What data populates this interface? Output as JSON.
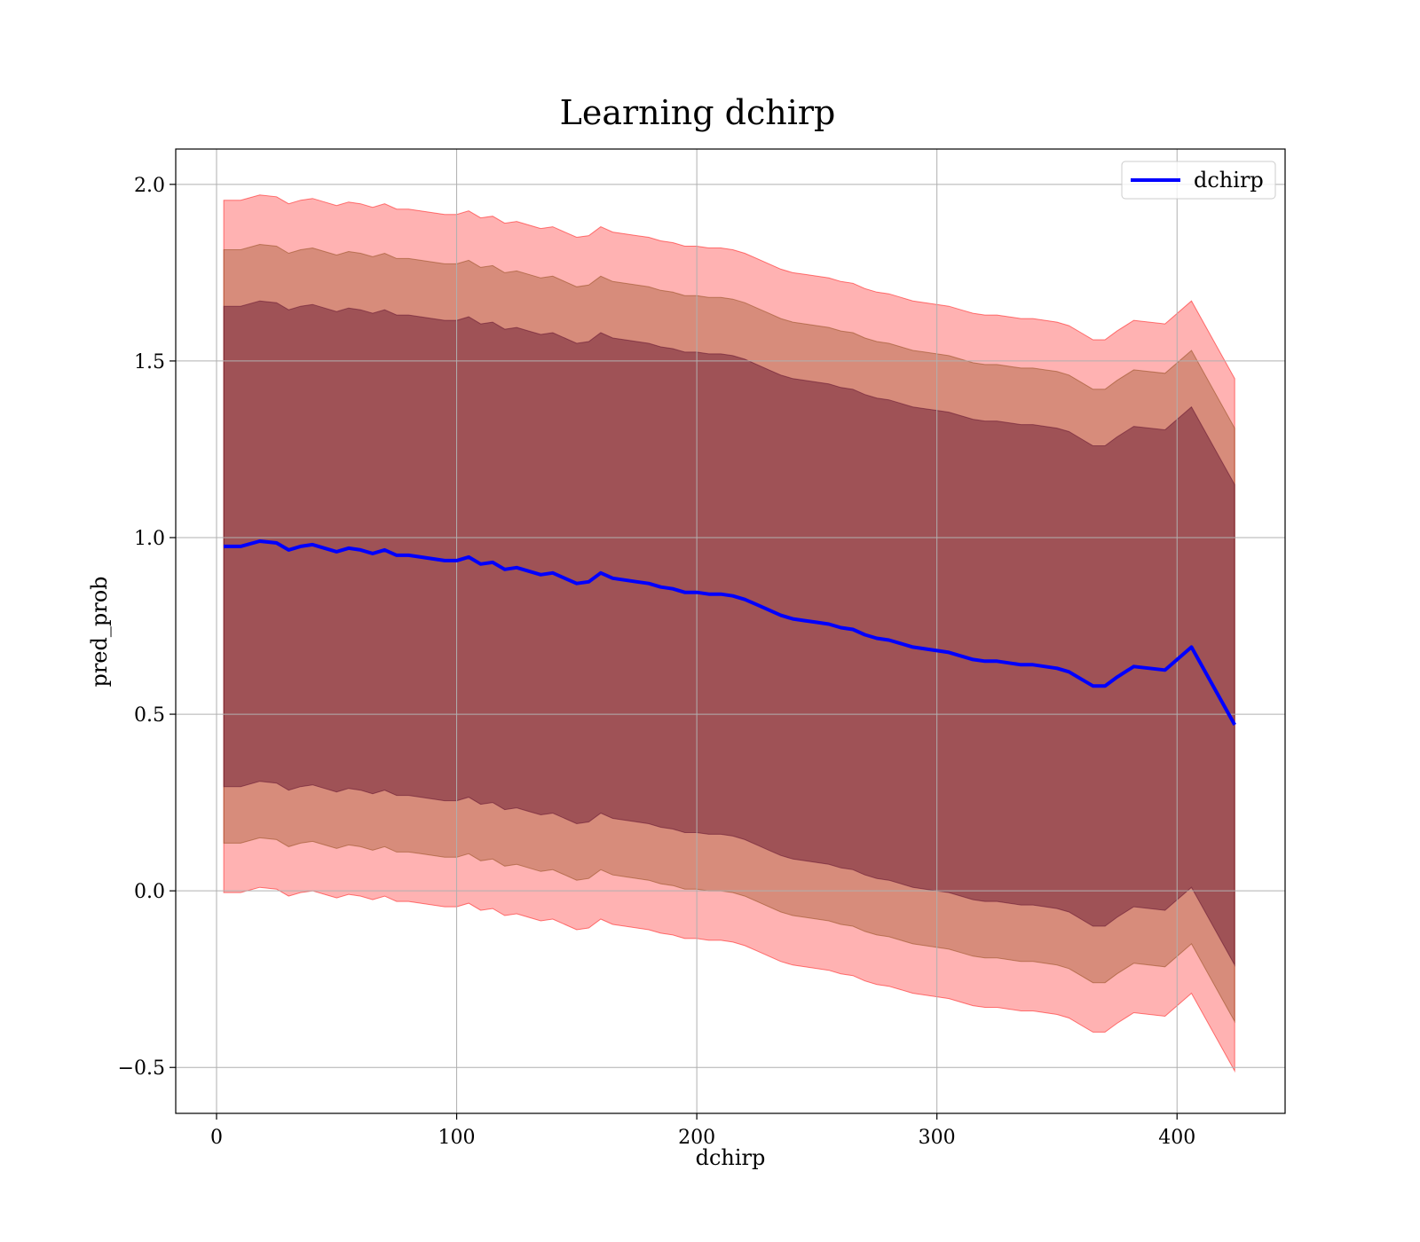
{
  "chart_data": {
    "type": "line",
    "title": "Learning dchirp",
    "xlabel": "dchirp",
    "ylabel": "pred_prob",
    "xlim": [
      -17,
      445
    ],
    "ylim": [
      -0.63,
      2.1
    ],
    "xticks": [
      0,
      100,
      200,
      300,
      400
    ],
    "yticks": [
      -0.5,
      0.0,
      0.5,
      1.0,
      1.5,
      2.0
    ],
    "xtick_labels": [
      "0",
      "100",
      "200",
      "300",
      "400"
    ],
    "ytick_labels": [
      "−0.5",
      "0.0",
      "0.5",
      "1.0",
      "1.5",
      "2.0"
    ],
    "grid": true,
    "legend_position": "top-right",
    "colors": {
      "line": "#0000ff",
      "band_outer": "#ff0000",
      "band_middle": "#8b4513",
      "band_inner": "#5a0a2a",
      "grid": "#b0b0b0"
    },
    "band_opacities": [
      0.3,
      0.35,
      0.45
    ],
    "series": [
      {
        "name": "dchirp",
        "kind": "line",
        "x": [
          3,
          10,
          18,
          25,
          30,
          35,
          40,
          45,
          50,
          55,
          60,
          65,
          70,
          75,
          80,
          85,
          90,
          95,
          100,
          105,
          110,
          115,
          120,
          125,
          130,
          135,
          140,
          145,
          150,
          155,
          160,
          165,
          170,
          175,
          180,
          185,
          190,
          195,
          200,
          205,
          210,
          215,
          220,
          225,
          230,
          235,
          240,
          245,
          250,
          255,
          260,
          265,
          270,
          275,
          280,
          285,
          290,
          295,
          300,
          305,
          310,
          315,
          320,
          325,
          330,
          335,
          340,
          345,
          350,
          355,
          360,
          365,
          370,
          375,
          382,
          395,
          406,
          424
        ],
        "y": [
          0.975,
          0.975,
          0.99,
          0.985,
          0.965,
          0.975,
          0.98,
          0.97,
          0.96,
          0.97,
          0.965,
          0.955,
          0.965,
          0.95,
          0.95,
          0.945,
          0.94,
          0.935,
          0.935,
          0.945,
          0.925,
          0.93,
          0.91,
          0.915,
          0.905,
          0.895,
          0.9,
          0.885,
          0.87,
          0.875,
          0.9,
          0.885,
          0.88,
          0.875,
          0.87,
          0.86,
          0.855,
          0.845,
          0.845,
          0.84,
          0.84,
          0.835,
          0.825,
          0.81,
          0.795,
          0.78,
          0.77,
          0.765,
          0.76,
          0.755,
          0.745,
          0.74,
          0.725,
          0.715,
          0.71,
          0.7,
          0.69,
          0.685,
          0.68,
          0.675,
          0.665,
          0.655,
          0.65,
          0.65,
          0.645,
          0.64,
          0.64,
          0.635,
          0.63,
          0.62,
          0.6,
          0.58,
          0.58,
          0.605,
          0.635,
          0.625,
          0.69,
          0.47
        ]
      },
      {
        "kind": "band",
        "x": [
          3,
          10,
          18,
          25,
          30,
          35,
          40,
          45,
          50,
          55,
          60,
          65,
          70,
          75,
          80,
          85,
          90,
          95,
          100,
          105,
          110,
          115,
          120,
          125,
          130,
          135,
          140,
          145,
          150,
          155,
          160,
          165,
          170,
          175,
          180,
          185,
          190,
          195,
          200,
          205,
          210,
          215,
          220,
          225,
          230,
          235,
          240,
          245,
          250,
          255,
          260,
          265,
          270,
          275,
          280,
          285,
          290,
          295,
          300,
          305,
          310,
          315,
          320,
          325,
          330,
          335,
          340,
          345,
          350,
          355,
          360,
          365,
          370,
          375,
          382,
          395,
          406,
          424
        ],
        "half_widths": [
          0.98,
          0.84,
          0.68
        ]
      }
    ]
  }
}
